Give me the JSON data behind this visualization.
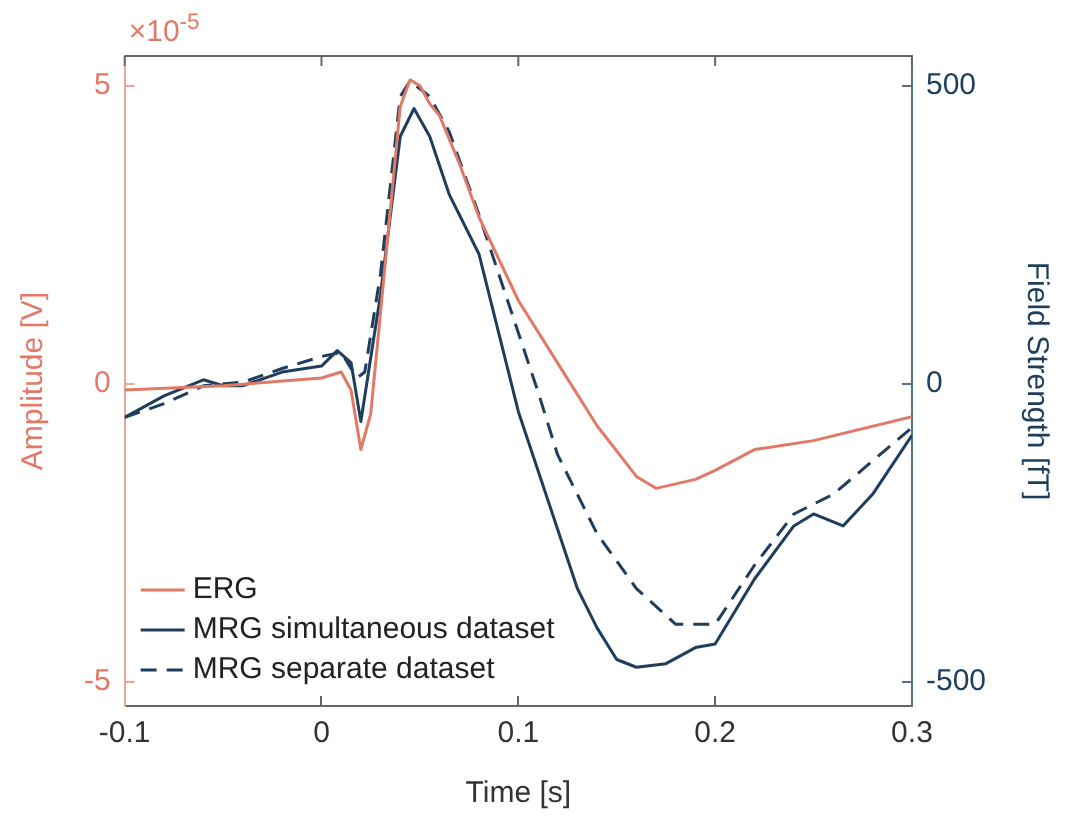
{
  "chart_data": {
    "type": "line",
    "xlabel": "Time [s]",
    "ylabel": "Amplitude [V]",
    "y2label": "Field Strength [fT]",
    "annotations": [
      "×10$^{-5}$"
    ],
    "xlim": [
      -0.1,
      0.3
    ],
    "xticks": [
      -0.1,
      0,
      0.1,
      0.2,
      0.3
    ],
    "ylim": [
      -5.4,
      5.5
    ],
    "yticks": [
      -5,
      0,
      5
    ],
    "y2lim": [
      -540,
      550
    ],
    "y2ticks": [
      -500,
      0,
      500
    ],
    "legend": "bottom left",
    "grid": false,
    "marker": "none",
    "series": [
      {
        "name": "ERG",
        "color": "#e07a66",
        "axis": "y",
        "line_style": "solid",
        "x": [
          -0.1,
          -0.05,
          0,
          0.01,
          0.015,
          0.02,
          0.025,
          0.03,
          0.04,
          0.045,
          0.05,
          0.055,
          0.06,
          0.07,
          0.08,
          0.1,
          0.12,
          0.14,
          0.16,
          0.17,
          0.19,
          0.2,
          0.22,
          0.25,
          0.3
        ],
        "values": [
          -0.1,
          -0.03,
          0.1,
          0.2,
          -0.1,
          -1.1,
          -0.5,
          1.2,
          4.65,
          5.1,
          5.0,
          4.7,
          4.5,
          3.7,
          2.8,
          1.4,
          0.35,
          -0.7,
          -1.55,
          -1.75,
          -1.6,
          -1.45,
          -1.1,
          -0.95,
          -0.55
        ]
      },
      {
        "name": "MRG simultaneous dataset",
        "color": "#1f3d5c",
        "axis": "y2",
        "line_style": "solid",
        "x": [
          -0.1,
          -0.08,
          -0.06,
          -0.05,
          -0.04,
          -0.02,
          0,
          0.008,
          0.015,
          0.02,
          0.03,
          0.04,
          0.047,
          0.055,
          0.065,
          0.08,
          0.1,
          0.12,
          0.13,
          0.14,
          0.15,
          0.16,
          0.175,
          0.19,
          0.2,
          0.22,
          0.24,
          0.25,
          0.265,
          0.28,
          0.3
        ],
        "values": [
          -56,
          -20,
          7,
          -3,
          -3,
          20,
          30,
          56,
          36,
          -63,
          150,
          415,
          462,
          415,
          317,
          218,
          -46,
          -244,
          -343,
          -409,
          -462,
          -475,
          -469,
          -442,
          -436,
          -327,
          -238,
          -218,
          -238,
          -185,
          -86
        ]
      },
      {
        "name": "MRG separate dataset",
        "color": "#1f3d5c",
        "axis": "y2",
        "line_style": "dashed",
        "x": [
          -0.1,
          -0.08,
          -0.06,
          -0.04,
          -0.02,
          0,
          0.01,
          0.018,
          0.022,
          0.03,
          0.04,
          0.045,
          0.055,
          0.065,
          0.08,
          0.1,
          0.11,
          0.12,
          0.14,
          0.16,
          0.18,
          0.2,
          0.22,
          0.24,
          0.26,
          0.3
        ],
        "values": [
          -56,
          -33,
          -3,
          3,
          26,
          46,
          53,
          10,
          20,
          185,
          482,
          508,
          482,
          422,
          284,
          86,
          -13,
          -119,
          -251,
          -343,
          -403,
          -403,
          -304,
          -218,
          -185,
          -73
        ]
      }
    ]
  }
}
